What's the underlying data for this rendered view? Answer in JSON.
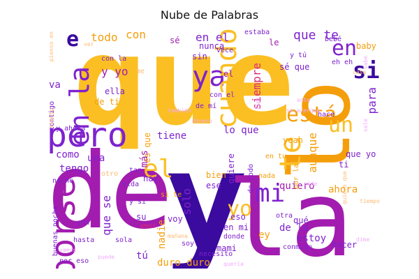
{
  "title": "Nube de Palabras",
  "palette": {
    "gold": "#FBBF24",
    "orange": "#F59E0B",
    "dark_orange": "#EA580C",
    "magenta": "#A21CAF",
    "purple": "#7E22CE",
    "indigo": "#3B0A9E",
    "pink": "#DB2777",
    "light_orange": "#FDBA74",
    "light_pink": "#F0ABFC"
  },
  "words": [
    {
      "text": "que",
      "color": "gold"
    },
    {
      "text": "y",
      "color": "indigo"
    },
    {
      "text": "de",
      "color": "magenta"
    },
    {
      "text": "la",
      "color": "magenta"
    },
    {
      "text": "lo",
      "color": "orange"
    },
    {
      "text": "pero",
      "color": "purple"
    },
    {
      "text": "porse",
      "color": "magenta"
    },
    {
      "text": "te",
      "color": "gold"
    },
    {
      "text": "en la",
      "color": "purple"
    },
    {
      "text": "ya",
      "color": "purple"
    },
    {
      "text": "cuando",
      "color": "gold"
    },
    {
      "text": "está",
      "color": "orange"
    },
    {
      "text": "el",
      "color": "gold"
    },
    {
      "text": "mi",
      "color": "purple"
    },
    {
      "text": "yo",
      "color": "gold"
    },
    {
      "text": "si",
      "color": "indigo"
    },
    {
      "text": "en",
      "color": "purple"
    },
    {
      "text": "un",
      "color": "gold"
    },
    {
      "text": "e",
      "color": "indigo"
    },
    {
      "text": "todo",
      "color": "orange"
    },
    {
      "text": "con",
      "color": "orange"
    },
    {
      "text": "en el",
      "color": "purple"
    },
    {
      "text": "que te",
      "color": "purple"
    },
    {
      "text": "y yo",
      "color": "magenta"
    },
    {
      "text": "siempre",
      "color": "pink"
    },
    {
      "text": "nunca",
      "color": "purple"
    },
    {
      "text": "sé que",
      "color": "purple"
    },
    {
      "text": "lo que",
      "color": "purple"
    },
    {
      "text": "tiene",
      "color": "purple"
    },
    {
      "text": "aunque",
      "color": "orange"
    },
    {
      "text": "tengo",
      "color": "purple"
    },
    {
      "text": "como",
      "color": "purple"
    },
    {
      "text": "una",
      "color": "purple"
    },
    {
      "text": "quiero",
      "color": "magenta"
    },
    {
      "text": "ahora",
      "color": "orange"
    },
    {
      "text": "de la",
      "color": "purple"
    },
    {
      "text": "estoy",
      "color": "purple"
    },
    {
      "text": "en mi",
      "color": "purple"
    },
    {
      "text": "mami",
      "color": "purple"
    },
    {
      "text": "duro duro",
      "color": "orange"
    },
    {
      "text": "nadie",
      "color": "orange"
    },
    {
      "text": "solo",
      "color": "purple"
    },
    {
      "text": "tú",
      "color": "purple"
    },
    {
      "text": "que se",
      "color": "purple"
    },
    {
      "text": "ey",
      "color": "orange"
    },
    {
      "text": "más",
      "color": "magenta"
    },
    {
      "text": "hay",
      "color": "purple"
    },
    {
      "text": "va",
      "color": "purple"
    },
    {
      "text": "para",
      "color": "purple"
    },
    {
      "text": "el",
      "color": "magenta"
    },
    {
      "text": "le",
      "color": "magenta"
    },
    {
      "text": "ella",
      "color": "purple"
    },
    {
      "text": "baby",
      "color": "orange"
    },
    {
      "text": "y tú",
      "color": "purple"
    },
    {
      "text": "eh eh",
      "color": "purple"
    },
    {
      "text": "estaba",
      "color": "purple"
    },
    {
      "text": "sin",
      "color": "purple"
    },
    {
      "text": "con la",
      "color": "purple"
    },
    {
      "text": "de ti",
      "color": "orange"
    },
    {
      "text": "de mí",
      "color": "purple"
    },
    {
      "text": "con el",
      "color": "purple"
    },
    {
      "text": "bebé",
      "color": "purple"
    },
    {
      "text": "vece",
      "color": "purple"
    },
    {
      "text": "sé",
      "color": "magenta"
    },
    {
      "text": "es que",
      "color": "orange"
    },
    {
      "text": "quiere",
      "color": "purple"
    },
    {
      "text": "yeah",
      "color": "orange"
    },
    {
      "text": "noche",
      "color": "purple"
    },
    {
      "text": "tan",
      "color": "purple"
    },
    {
      "text": "vida",
      "color": "purple"
    },
    {
      "text": "ti",
      "color": "purple"
    },
    {
      "text": "qué",
      "color": "purple"
    },
    {
      "text": "hacer",
      "color": "purple"
    },
    {
      "text": "necesito",
      "color": "purple"
    },
    {
      "text": "donde",
      "color": "purple"
    },
    {
      "text": "nada",
      "color": "orange"
    },
    {
      "text": "eso",
      "color": "purple"
    },
    {
      "text": "bien",
      "color": "orange"
    },
    {
      "text": "ese",
      "color": "purple"
    },
    {
      "text": "hasta",
      "color": "purple"
    },
    {
      "text": "son",
      "color": "purple"
    },
    {
      "text": "voy",
      "color": "purple"
    },
    {
      "text": "amor",
      "color": "pink"
    },
    {
      "text": "sola",
      "color": "purple"
    },
    {
      "text": "su",
      "color": "purple"
    },
    {
      "text": "contigo",
      "color": "purple"
    },
    {
      "text": "conmigo",
      "color": "purple"
    },
    {
      "text": "por eso",
      "color": "purple"
    },
    {
      "text": "buenas noche",
      "color": "purple"
    },
    {
      "text": "y ahora",
      "color": "purple"
    },
    {
      "text": "por la",
      "color": "orange"
    },
    {
      "text": "en tu",
      "color": "orange"
    },
    {
      "text": "que yo",
      "color": "purple"
    },
    {
      "text": "hace",
      "color": "purple"
    },
    {
      "text": "si te",
      "color": "orange"
    },
    {
      "text": "y si",
      "color": "purple"
    },
    {
      "text": "soy",
      "color": "purple"
    },
    {
      "text": "otra",
      "color": "purple"
    },
    {
      "text": "de todo",
      "color": "purple"
    },
    {
      "text": "pienso en",
      "color": "light_orange"
    },
    {
      "text": "siento",
      "color": "light_orange"
    },
    {
      "text": "ver",
      "color": "light_orange"
    },
    {
      "text": "ante",
      "color": "light_pink"
    },
    {
      "text": "casa",
      "color": "light_orange"
    },
    {
      "text": "sale",
      "color": "light_pink"
    },
    {
      "text": "también",
      "color": "light_pink"
    },
    {
      "text": "dinero",
      "color": "light_pink"
    },
    {
      "text": "pide",
      "color": "light_pink"
    },
    {
      "text": "mañana",
      "color": "light_orange"
    },
    {
      "text": "puede",
      "color": "light_pink"
    },
    {
      "text": "quería",
      "color": "light_pink"
    },
    {
      "text": "dime",
      "color": "light_pink"
    },
    {
      "text": "tiempo",
      "color": "light_orange"
    },
    {
      "text": "otro",
      "color": "light_orange"
    },
    {
      "text": "fue",
      "color": "light_pink"
    },
    {
      "text": "sabe",
      "color": "light_pink"
    },
    {
      "text": "me",
      "color": "light_orange"
    },
    {
      "text": "se acerque",
      "color": "light_pink"
    },
    {
      "text": "quiero que",
      "color": "light_orange"
    },
    {
      "text": "vamos",
      "color": "light_pink"
    }
  ]
}
